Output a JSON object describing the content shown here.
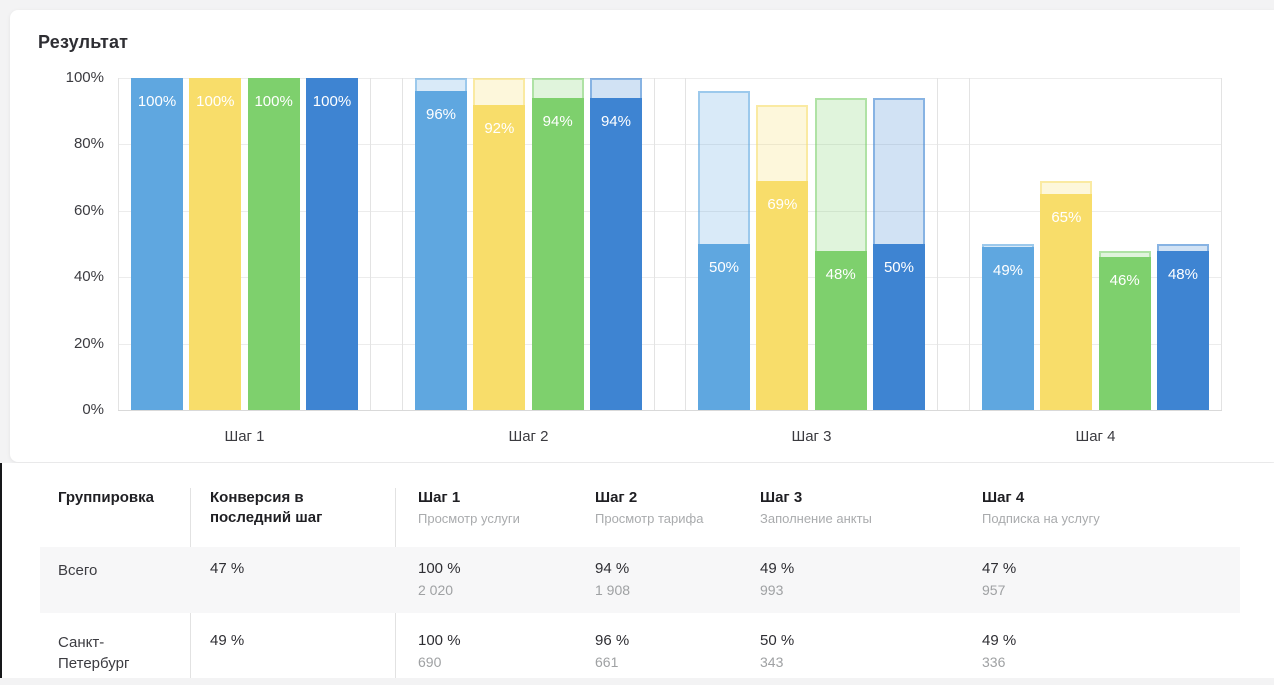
{
  "page": {
    "title": "Результат"
  },
  "chart_data": {
    "type": "bar",
    "title": "Результат",
    "note": "funnel step chart; each bar shows current-step % solid, previous-step % as light outlined ghost behind it",
    "categories": [
      "Шаг 1",
      "Шаг 2",
      "Шаг 3",
      "Шаг 4"
    ],
    "series": [
      {
        "name": "series-light-blue",
        "color": "#5FA7E0",
        "values": [
          100,
          96,
          50,
          49
        ]
      },
      {
        "name": "series-yellow",
        "color": "#F8DD6A",
        "values": [
          100,
          92,
          69,
          65
        ]
      },
      {
        "name": "series-green",
        "color": "#7ED06D",
        "values": [
          100,
          94,
          48,
          46
        ]
      },
      {
        "name": "series-dark-blue",
        "color": "#3E84D2",
        "values": [
          100,
          94,
          50,
          48
        ]
      }
    ],
    "bar_labels": {
      "Шаг 1": [
        "100%",
        "100%",
        "100%",
        "100%"
      ],
      "Шаг 2": [
        "96%",
        "92%",
        "94%",
        "94%"
      ],
      "Шаг 3": [
        "50%",
        "69%",
        "48%",
        "50%"
      ],
      "Шаг 4": [
        "49%",
        "65%",
        "46%",
        "48%"
      ]
    },
    "y_ticks": [
      "100%",
      "80%",
      "60%",
      "40%",
      "20%",
      "0%"
    ],
    "ylim": [
      0,
      100
    ],
    "grid": true,
    "legend": "none"
  },
  "table": {
    "columns": [
      {
        "title": "Группировка",
        "subtitle": ""
      },
      {
        "title": "Конверсия в последний шаг",
        "subtitle": ""
      },
      {
        "title": "Шаг 1",
        "subtitle": "Просмотр услуги"
      },
      {
        "title": "Шаг 2",
        "subtitle": "Просмотр тарифа"
      },
      {
        "title": "Шаг 3",
        "subtitle": "Заполнение анкты"
      },
      {
        "title": "Шаг 4",
        "subtitle": "Подписка на услугу"
      }
    ],
    "rows": [
      {
        "group": "Всего",
        "conversion": "47 %",
        "steps": [
          {
            "pct": "100 %",
            "count": "2 020"
          },
          {
            "pct": "94 %",
            "count": "1 908"
          },
          {
            "pct": "49 %",
            "count": "993"
          },
          {
            "pct": "47 %",
            "count": "957"
          }
        ]
      },
      {
        "group": "Санкт-Петербург",
        "conversion": "49 %",
        "steps": [
          {
            "pct": "100 %",
            "count": "690"
          },
          {
            "pct": "96 %",
            "count": "661"
          },
          {
            "pct": "50 %",
            "count": "343"
          },
          {
            "pct": "49 %",
            "count": "336"
          }
        ]
      }
    ]
  }
}
